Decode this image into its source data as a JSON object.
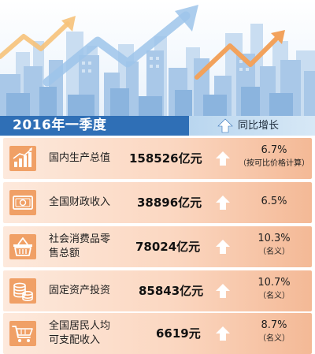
{
  "header": {
    "title": "2016年一季度",
    "growth_label": "同比增长",
    "growth_arrow_icon": "up-arrow-icon"
  },
  "rows": [
    {
      "icon": "bar-chart-trend-icon",
      "label_lines": [
        "国内生产总值"
      ],
      "value": "158526亿元",
      "growth": "6.7%",
      "note": "（按可比价格计算）"
    },
    {
      "icon": "banknote-icon",
      "label_lines": [
        "全国财政收入"
      ],
      "value": "38896亿元",
      "growth": "6.5%",
      "note": ""
    },
    {
      "icon": "shopping-basket-icon",
      "label_lines": [
        "社会消费品零",
        "售总额"
      ],
      "value": "78024亿元",
      "growth": "10.3%",
      "note": "（名义）"
    },
    {
      "icon": "coin-stack-icon",
      "label_lines": [
        "固定资产投资"
      ],
      "value": "85843亿元",
      "growth": "10.7%",
      "note": "（名义）"
    },
    {
      "icon": "shopping-cart-icon",
      "label_lines": [
        "全国居民人均",
        "可支配收入"
      ],
      "value": "6619元",
      "growth": "8.7%",
      "note": "（名义）"
    }
  ],
  "colors": {
    "band": "#2f6fb6",
    "icon_bg": "#f0a066",
    "arrow": "#ffffff"
  }
}
